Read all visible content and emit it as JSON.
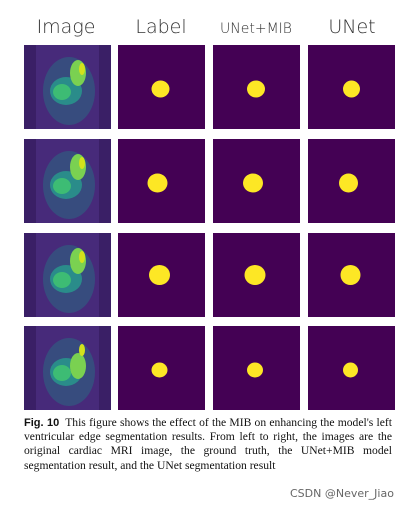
{
  "figure": {
    "columns": [
      "Image",
      "Label",
      "UNet+MIB",
      "UNet"
    ],
    "caption": {
      "label": "Fig. 10",
      "text": "This figure shows the effect of the MIB on enhancing the model's left ventricular edge segmentation results. From left to right, the images are the original cardiac MRI image, the ground truth, the UNet+MIB model segmentation result, and the UNet segmentation result"
    },
    "watermark": "CSDN @Never_Jiao"
  }
}
